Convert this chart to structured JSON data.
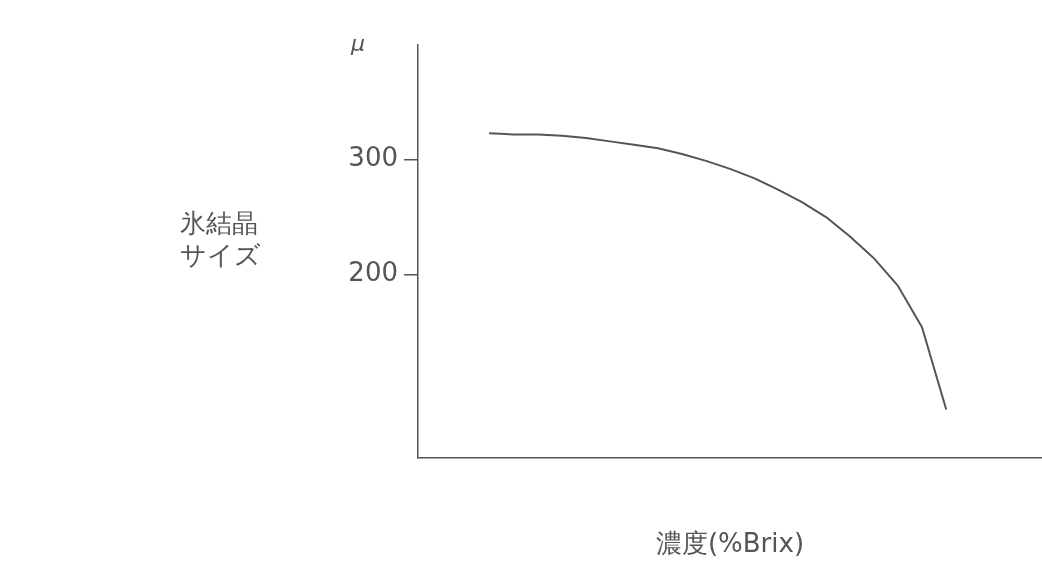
{
  "chart_data": {
    "type": "line",
    "xlabel": "濃度(%Brix)",
    "ylabel": "氷結晶サイズ",
    "annotations": [
      "μ"
    ],
    "categories": [
      null,
      null,
      null,
      null,
      null,
      null,
      null,
      null,
      null,
      null,
      null,
      null,
      null,
      null,
      null,
      null,
      null,
      null,
      null,
      null,
      null,
      null,
      null,
      null,
      null,
      null,
      null
    ],
    "series": [
      {
        "color": "#555555",
        "values": [
          null,
          null,
          null,
          323,
          322,
          322,
          321,
          319,
          316,
          313,
          310,
          305,
          299,
          292,
          284,
          274,
          263,
          250,
          233,
          214,
          190,
          154,
          83,
          null,
          null,
          null,
          null
        ]
      }
    ],
    "ylim": [
      40,
      400
    ],
    "yticks": [
      200,
      300
    ],
    "grid": false,
    "legend": false,
    "marker": "none",
    "line_style": "solid",
    "tick_labels": "y"
  }
}
